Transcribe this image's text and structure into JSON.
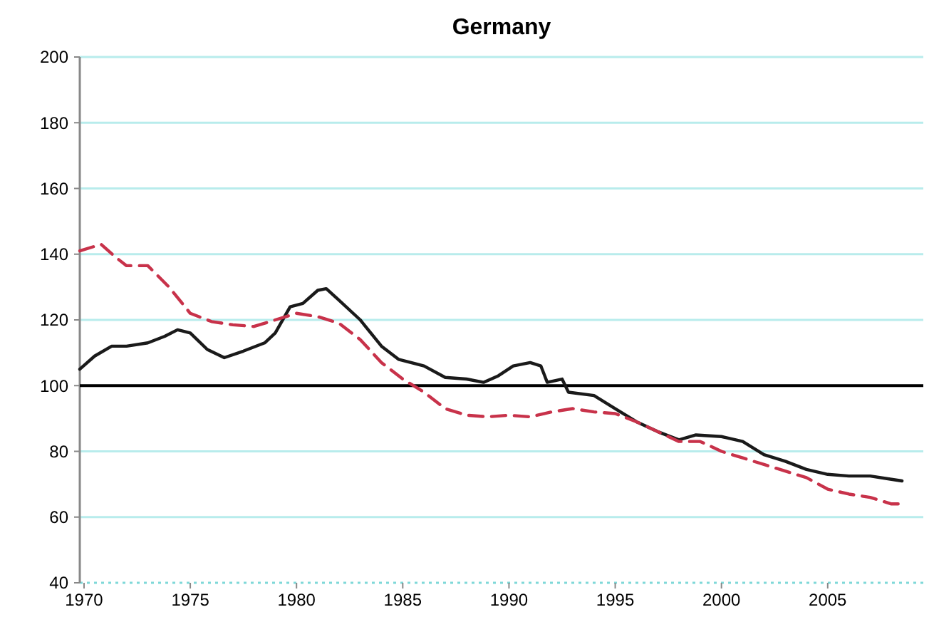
{
  "chart_data": {
    "type": "line",
    "title": "Germany",
    "xlim": [
      1969.8,
      2009.5
    ],
    "ylim": [
      40,
      200
    ],
    "xticks": [
      1970,
      1975,
      1980,
      1985,
      1990,
      1995,
      2000,
      2005
    ],
    "yticks": [
      40,
      60,
      80,
      100,
      120,
      140,
      160,
      180,
      200
    ],
    "grid": "y",
    "ref_lines": [
      {
        "axis": "y",
        "value": 100,
        "color": "#000000"
      }
    ],
    "series": [
      {
        "color": "#1a1a1a",
        "line_style": "solid",
        "x": [
          1969.8,
          1970.5,
          1971.3,
          1972,
          1973,
          1973.8,
          1974.4,
          1975,
          1975.8,
          1976.6,
          1977.5,
          1978.5,
          1979,
          1979.7,
          1980.3,
          1981,
          1981.4,
          1982,
          1983,
          1984,
          1984.8,
          1986,
          1987,
          1988,
          1988.8,
          1989.5,
          1990.2,
          1991,
          1991.5,
          1991.8,
          1992.5,
          1992.8,
          1994,
          1995,
          1996,
          1997,
          1998,
          1998.8,
          2000,
          2001,
          2002,
          2003,
          2004,
          2005,
          2006,
          2007,
          2008,
          2008.5
        ],
        "values": [
          105,
          109,
          112,
          112,
          113,
          115,
          117,
          116,
          111,
          108.5,
          110.5,
          113,
          116,
          124,
          125,
          129,
          129.5,
          126,
          120,
          112,
          108,
          106,
          102.5,
          102,
          101,
          103,
          106,
          107,
          106,
          101,
          102,
          98,
          97,
          93,
          89,
          86,
          83.5,
          85,
          84.5,
          83,
          79,
          77,
          74.5,
          73,
          72.5,
          72.5,
          71.5,
          71
        ]
      },
      {
        "color": "#c8324a",
        "line_style": "dashed",
        "x": [
          1969.8,
          1970.8,
          1971.5,
          1972,
          1973,
          1974,
          1975,
          1976,
          1977,
          1978,
          1979,
          1980,
          1981,
          1982,
          1983,
          1984,
          1985,
          1986,
          1987,
          1988,
          1989,
          1990,
          1991,
          1992,
          1993,
          1994,
          1995,
          1996,
          1997,
          1998,
          1999,
          2000,
          2001,
          2002,
          2003,
          2004,
          2005,
          2006,
          2007,
          2008,
          2008.5
        ],
        "values": [
          141,
          143,
          139,
          136.5,
          136.5,
          130,
          122,
          119.5,
          118.5,
          118,
          120,
          122,
          121,
          119,
          114,
          107,
          102,
          98,
          93,
          91,
          90.5,
          91,
          90.5,
          92,
          93,
          92,
          91.5,
          89,
          86,
          83,
          83,
          80,
          78,
          76,
          74,
          72,
          68.5,
          67,
          66,
          64,
          64
        ]
      }
    ]
  }
}
